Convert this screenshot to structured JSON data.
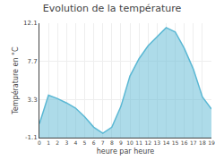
{
  "chart_data": {
    "type": "area",
    "title": "Evolution de la température",
    "xlabel": "heure par heure",
    "ylabel": "Température en °C",
    "x": [
      0,
      1,
      2,
      3,
      4,
      5,
      6,
      7,
      8,
      9,
      10,
      11,
      12,
      13,
      14,
      15,
      16,
      17,
      18,
      19
    ],
    "values": [
      0.5,
      3.8,
      3.4,
      2.9,
      2.3,
      1.3,
      0.1,
      -0.6,
      0.1,
      2.5,
      6.0,
      8.0,
      9.5,
      10.5,
      11.6,
      11.1,
      9.2,
      6.8,
      3.6,
      2.2
    ],
    "color": "#5bb8d4",
    "xlim": [
      0,
      19
    ],
    "ylim": [
      -1.1,
      12.1
    ],
    "xticks": [
      0,
      1,
      2,
      3,
      4,
      5,
      6,
      7,
      8,
      9,
      10,
      11,
      12,
      13,
      14,
      15,
      16,
      17,
      18,
      19
    ],
    "yticks": [
      -1.1,
      3.3,
      7.7,
      12.1
    ],
    "grid": true
  }
}
